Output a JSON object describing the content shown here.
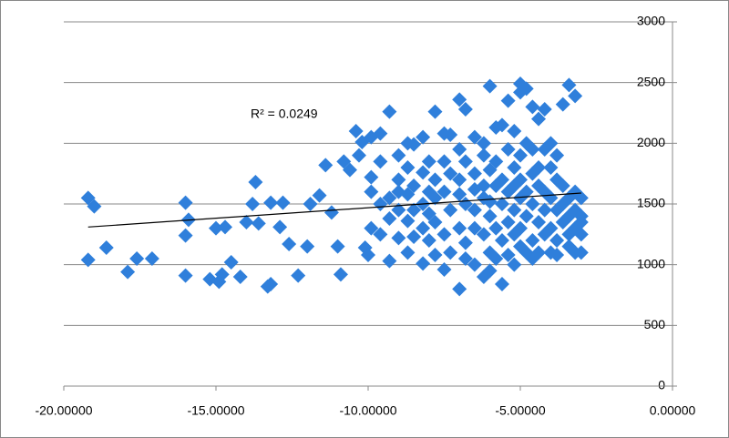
{
  "chart_data": {
    "type": "scatter",
    "annotation": "R² = 0.0249",
    "x": [
      -19.2,
      -19.0,
      -19.2,
      -18.6,
      -17.9,
      -17.6,
      -17.1,
      -16.0,
      -16.0,
      -15.9,
      -16.0,
      -15.2,
      -14.9,
      -14.8,
      -15.0,
      -14.7,
      -14.5,
      -14.2,
      -14.0,
      -13.8,
      -13.7,
      -13.6,
      -13.3,
      -13.2,
      -13.2,
      -12.8,
      -12.9,
      -12.6,
      -12.3,
      -12.0,
      -11.9,
      -11.6,
      -11.4,
      -11.2,
      -11.0,
      -10.9,
      -10.8,
      -10.6,
      -10.4,
      -10.3,
      -10.2,
      -10.1,
      -10.0,
      -9.9,
      -9.9,
      -9.9,
      -9.9,
      -9.6,
      -9.6,
      -9.6,
      -9.6,
      -9.3,
      -9.3,
      -9.3,
      -9.3,
      -9.0,
      -9.0,
      -9.0,
      -9.0,
      -9.0,
      -8.7,
      -8.7,
      -8.7,
      -8.7,
      -8.7,
      -8.5,
      -8.5,
      -8.5,
      -8.5,
      -8.2,
      -8.2,
      -8.2,
      -8.2,
      -8.2,
      -8.0,
      -8.0,
      -8.0,
      -8.0,
      -7.8,
      -7.8,
      -7.8,
      -7.8,
      -7.8,
      -7.5,
      -7.5,
      -7.5,
      -7.5,
      -7.5,
      -7.3,
      -7.3,
      -7.3,
      -7.3,
      -7.0,
      -7.0,
      -7.0,
      -7.0,
      -7.0,
      -7.0,
      -6.8,
      -6.8,
      -6.8,
      -6.8,
      -6.8,
      -6.5,
      -6.5,
      -6.5,
      -6.5,
      -6.5,
      -6.5,
      -6.2,
      -6.2,
      -6.2,
      -6.2,
      -6.2,
      -6.2,
      -6.0,
      -6.0,
      -6.0,
      -6.0,
      -6.0,
      -6.0,
      -5.8,
      -5.8,
      -5.8,
      -5.8,
      -5.8,
      -5.6,
      -5.6,
      -5.6,
      -5.6,
      -5.6,
      -5.4,
      -5.4,
      -5.4,
      -5.4,
      -5.4,
      -5.2,
      -5.2,
      -5.2,
      -5.2,
      -5.2,
      -5.2,
      -5.0,
      -5.0,
      -5.0,
      -5.0,
      -5.0,
      -5.0,
      -5.0,
      -4.8,
      -4.8,
      -4.8,
      -4.8,
      -4.8,
      -4.6,
      -4.6,
      -4.6,
      -4.6,
      -4.6,
      -4.6,
      -4.4,
      -4.4,
      -4.4,
      -4.4,
      -4.4,
      -4.2,
      -4.2,
      -4.2,
      -4.2,
      -4.2,
      -4.0,
      -4.0,
      -4.0,
      -4.0,
      -4.0,
      -3.8,
      -3.8,
      -3.8,
      -3.8,
      -3.8,
      -3.6,
      -3.6,
      -3.6,
      -3.6,
      -3.4,
      -3.4,
      -3.4,
      -3.4,
      -3.4,
      -3.2,
      -3.2,
      -3.2,
      -3.2,
      -3.2,
      -3.0,
      -3.0,
      -3.0,
      -3.0,
      -3.0
    ],
    "series": [
      {
        "color": "#2f7fdb",
        "values": [
          1550,
          1480,
          1040,
          1140,
          940,
          1050,
          1050,
          1510,
          1240,
          1370,
          910,
          880,
          860,
          920,
          1300,
          1310,
          1020,
          900,
          1350,
          1500,
          1680,
          1340,
          820,
          840,
          1510,
          1510,
          1310,
          1170,
          910,
          1150,
          1500,
          1570,
          1820,
          1430,
          1150,
          920,
          1850,
          1780,
          2100,
          1900,
          2010,
          1140,
          1080,
          1600,
          1300,
          2050,
          1720,
          1850,
          1500,
          2080,
          1250,
          2260,
          1380,
          1550,
          1030,
          1700,
          1450,
          1220,
          1900,
          1600,
          1580,
          1100,
          1800,
          1360,
          2000,
          1990,
          1650,
          1230,
          1450,
          1760,
          1500,
          1010,
          2050,
          1300,
          1600,
          1200,
          1850,
          1420,
          2260,
          1700,
          1350,
          1080,
          1550,
          2080,
          1600,
          1250,
          960,
          1850,
          1450,
          1750,
          1100,
          2070,
          2360,
          800,
          1580,
          1300,
          1700,
          1950,
          2280,
          1500,
          1180,
          1850,
          1050,
          1620,
          2050,
          1300,
          1000,
          1450,
          1750,
          1550,
          900,
          1900,
          1250,
          1650,
          2000,
          2470,
          1400,
          1100,
          1780,
          1520,
          950,
          1300,
          1650,
          1850,
          1050,
          2130,
          2150,
          1500,
          840,
          1200,
          1700,
          1950,
          1350,
          1600,
          1080,
          2350,
          1450,
          1800,
          1250,
          2100,
          1000,
          1650,
          2490,
          2420,
          1550,
          1300,
          1900,
          1150,
          1700,
          2450,
          1600,
          1400,
          2000,
          1100,
          2300,
          1500,
          1200,
          1750,
          1950,
          1050,
          2200,
          1350,
          1650,
          1800,
          1100,
          2280,
          1600,
          1250,
          1950,
          1450,
          1800,
          1300,
          1550,
          2000,
          1100,
          1700,
          1450,
          1200,
          1900,
          1080,
          2320,
          1500,
          1350,
          1650,
          2480,
          1400,
          1250,
          1550,
          1150,
          2390,
          1600,
          1300,
          1100,
          1450,
          1550,
          1250,
          1400,
          1100,
          1350
        ]
      }
    ],
    "trendline": {
      "color": "#000000",
      "x": [
        -19.2,
        -3.0
      ],
      "values": [
        1310,
        1590
      ]
    },
    "xlim": [
      -20,
      0
    ],
    "ylim": [
      0,
      3000
    ],
    "xticks": [
      {
        "value": -20,
        "label": "-20.00000"
      },
      {
        "value": -15,
        "label": "-15.00000"
      },
      {
        "value": -10,
        "label": "-10.00000"
      },
      {
        "value": -5,
        "label": "-5.00000"
      },
      {
        "value": 0,
        "label": "0.00000"
      }
    ],
    "yticks": [
      0,
      500,
      1000,
      1500,
      2000,
      2500,
      3000
    ],
    "grid": true
  }
}
